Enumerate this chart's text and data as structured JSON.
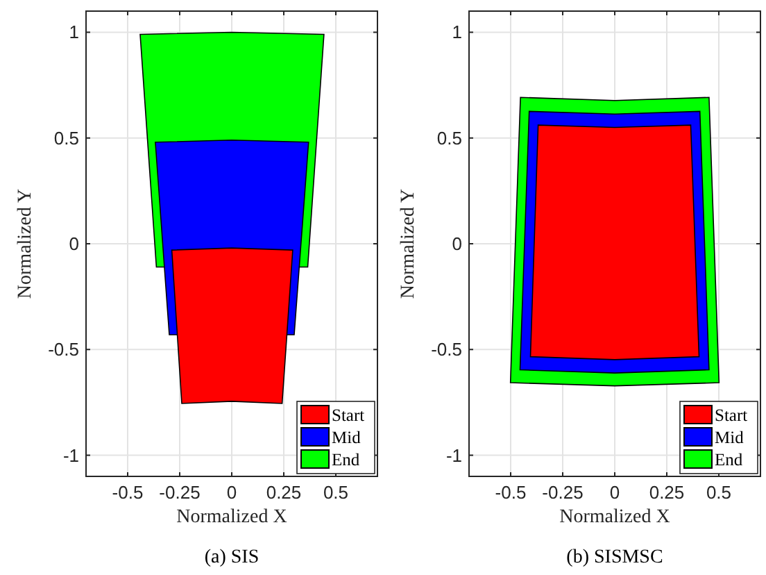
{
  "chart_data": [
    {
      "type": "area",
      "xlabel": "Normalized X",
      "ylabel": "Normalized Y",
      "annotations": [
        "(a)  SIS"
      ],
      "xlim": [
        -0.7,
        0.7
      ],
      "ylim": [
        -1.1,
        1.1
      ],
      "xticks": [
        -0.5,
        -0.25,
        0,
        0.25,
        0.5
      ],
      "yticks": [
        -1,
        -0.5,
        0,
        0.5,
        1
      ],
      "grid": true,
      "legend": "bottom right",
      "series": [
        {
          "name": "End",
          "color": "#00ff00",
          "x": [
            -0.44,
            0,
            0.443,
            0.365,
            -0.362
          ],
          "values": [
            0.99,
            1.0,
            0.99,
            -0.11,
            -0.11
          ]
        },
        {
          "name": "Mid",
          "color": "#0000ff",
          "x": [
            -0.367,
            0,
            0.369,
            0.3,
            -0.3
          ],
          "values": [
            0.48,
            0.49,
            0.48,
            -0.43,
            -0.43
          ]
        },
        {
          "name": "Start",
          "color": "#ff0000",
          "x": [
            -0.288,
            0,
            0.293,
            0.242,
            0,
            -0.24
          ],
          "values": [
            -0.03,
            -0.02,
            -0.03,
            -0.755,
            -0.745,
            -0.755
          ]
        }
      ]
    },
    {
      "type": "area",
      "xlabel": "Normalized X",
      "ylabel": "Normalized Y",
      "annotations": [
        "(b)  SISMSC"
      ],
      "xlim": [
        -0.7,
        0.7
      ],
      "ylim": [
        -1.1,
        1.1
      ],
      "xticks": [
        -0.5,
        -0.25,
        0,
        0.25,
        0.5
      ],
      "yticks": [
        -1,
        -0.5,
        0,
        0.5,
        1
      ],
      "grid": true,
      "legend": "bottom right",
      "series": [
        {
          "name": "End",
          "color": "#00ff00",
          "x": [
            -0.453,
            0,
            0.453,
            0.501,
            0,
            -0.501
          ],
          "values": [
            0.692,
            0.677,
            0.692,
            -0.657,
            -0.672,
            -0.657
          ]
        },
        {
          "name": "Mid",
          "color": "#0000ff",
          "x": [
            -0.411,
            0,
            0.409,
            0.453,
            0,
            -0.455
          ],
          "values": [
            0.626,
            0.613,
            0.626,
            -0.596,
            -0.611,
            -0.596
          ]
        },
        {
          "name": "Start",
          "color": "#ff0000",
          "x": [
            -0.368,
            0,
            0.365,
            0.405,
            0,
            -0.405
          ],
          "values": [
            0.561,
            0.55,
            0.561,
            -0.534,
            -0.548,
            -0.534
          ]
        }
      ]
    }
  ]
}
